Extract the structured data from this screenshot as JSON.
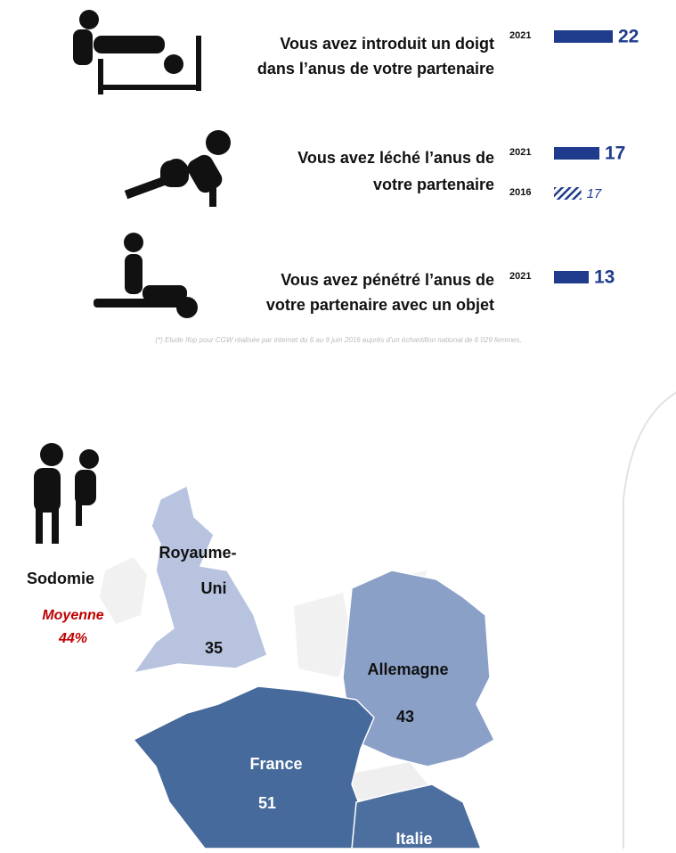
{
  "items": [
    {
      "lines": [
        "Vous avez introduit un doigt",
        "dans l’anus de votre partenaire"
      ],
      "rows": [
        {
          "year": "2021",
          "value": 22
        }
      ]
    },
    {
      "lines": [
        "Vous avez léché l’anus de",
        "votre partenaire"
      ],
      "rows": [
        {
          "year": "2021",
          "value": 17
        },
        {
          "year": "2016",
          "value": 17
        }
      ]
    },
    {
      "lines": [
        "Vous avez pénétré l’anus de",
        "votre partenaire avec un objet"
      ],
      "rows": [
        {
          "year": "2021",
          "value": 13
        }
      ]
    }
  ],
  "footnote": "(*) Etude Ifop pour CGW réalisée par internet du 6 au 9 juin 2016 auprès d’un échantillon national de 6 029 femmes,",
  "map": {
    "title": "Sodomie",
    "average_label": "Moyenne",
    "average": {
      "value": 44,
      "label": "44%"
    },
    "countries": [
      {
        "lines": [
          "Royaume-",
          "Uni"
        ],
        "value": 35
      },
      {
        "lines": [
          "Allemagne"
        ],
        "value": 43
      },
      {
        "lines": [
          "France"
        ],
        "value": 51
      },
      {
        "lines": [
          "Italie"
        ]
      }
    ]
  }
}
